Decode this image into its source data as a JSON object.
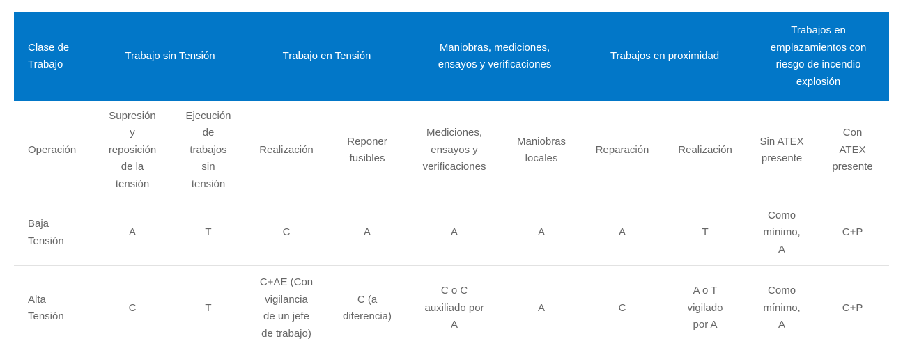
{
  "colors": {
    "header_bg": "#0277c8",
    "header_text": "#ffffff",
    "body_text": "#666666",
    "divider": "#e2e2e2"
  },
  "header": {
    "clase": "Clase de\nTrabajo",
    "groups": [
      "Trabajo sin Tensión",
      "Trabajo en Tensión",
      "Maniobras, mediciones,\nensayos y verificaciones",
      "Trabajos en proximidad",
      "Trabajos en\nemplazamientos con\nriesgo de incendio\nexplosión"
    ]
  },
  "subheader": {
    "label": "Operación",
    "cols": [
      "Supresión\ny\nreposición\nde la\ntensión",
      "Ejecución\nde\ntrabajos\nsin\ntensión",
      "Realización",
      "Reponer\nfusibles",
      "Mediciones,\nensayos y\nverificaciones",
      "Maniobras\nlocales",
      "Reparación",
      "Realización",
      "Sin ATEX\npresente",
      "Con\nATEX\npresente"
    ]
  },
  "rows": [
    {
      "label": "Baja\nTensión",
      "cells": [
        "A",
        "T",
        "C",
        "A",
        "A",
        "A",
        "A",
        "T",
        "Como\nmínimo,\nA",
        "C+P"
      ]
    },
    {
      "label": "Alta\nTensión",
      "cells": [
        "C",
        "T",
        "C+AE (Con\nvigilancia\nde un jefe\nde trabajo)",
        "C (a\ndiferencia)",
        "C o C\nauxiliado por\nA",
        "A",
        "C",
        "A o T\nvigilado\npor A",
        "Como\nmínimo,\nA",
        "C+P"
      ]
    }
  ]
}
